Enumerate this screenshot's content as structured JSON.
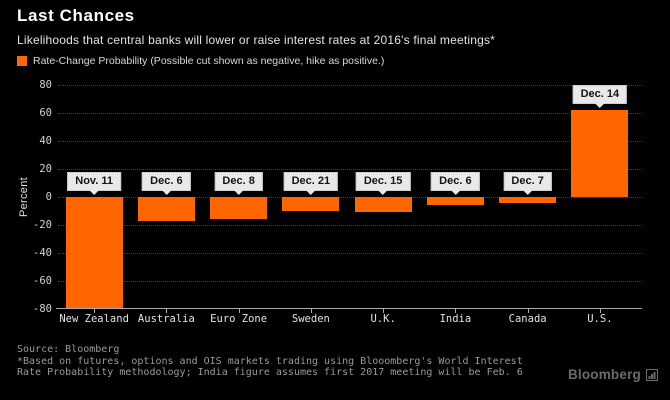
{
  "header": {
    "title": "Last Chances",
    "subtitle": "Likelihoods that central banks will lower or raise interest rates at 2016's final meetings*",
    "legend_label": "Rate-Change Probability (Possible cut shown as negative, hike as positive.)"
  },
  "chart_data": {
    "type": "bar",
    "title": "Last Chances",
    "xlabel": "",
    "ylabel": "Percent",
    "ylim": [
      -80,
      80
    ],
    "ytick_step": 20,
    "grid": true,
    "legend_position": "top-left",
    "categories": [
      "New Zealand",
      "Australia",
      "Euro Zone",
      "Sweden",
      "U.K.",
      "India",
      "Canada",
      "U.S."
    ],
    "values": [
      -79,
      -17,
      -16,
      -10,
      -11,
      -6,
      -4,
      62
    ],
    "bar_labels": [
      "Nov. 11",
      "Dec. 6",
      "Dec. 8",
      "Dec. 21",
      "Dec. 15",
      "Dec. 6",
      "Dec. 7",
      "Dec. 14"
    ],
    "series_name": "Rate-Change Probability"
  },
  "footer": {
    "source": "Source: Bloomberg",
    "note1": "*Based on futures, options and OIS markets trading using Blooomberg's World Interest",
    "note2": "Rate Probability methodology; India figure assumes first 2017 meeting will be Feb. 6",
    "brand": "Bloomberg"
  },
  "colors": {
    "accent": "#ff6600",
    "background": "#000000",
    "callout_bg": "#e9e9e9",
    "grid": "#424242",
    "axis": "#a8a8a8",
    "footer_text": "#9a9a9a"
  }
}
